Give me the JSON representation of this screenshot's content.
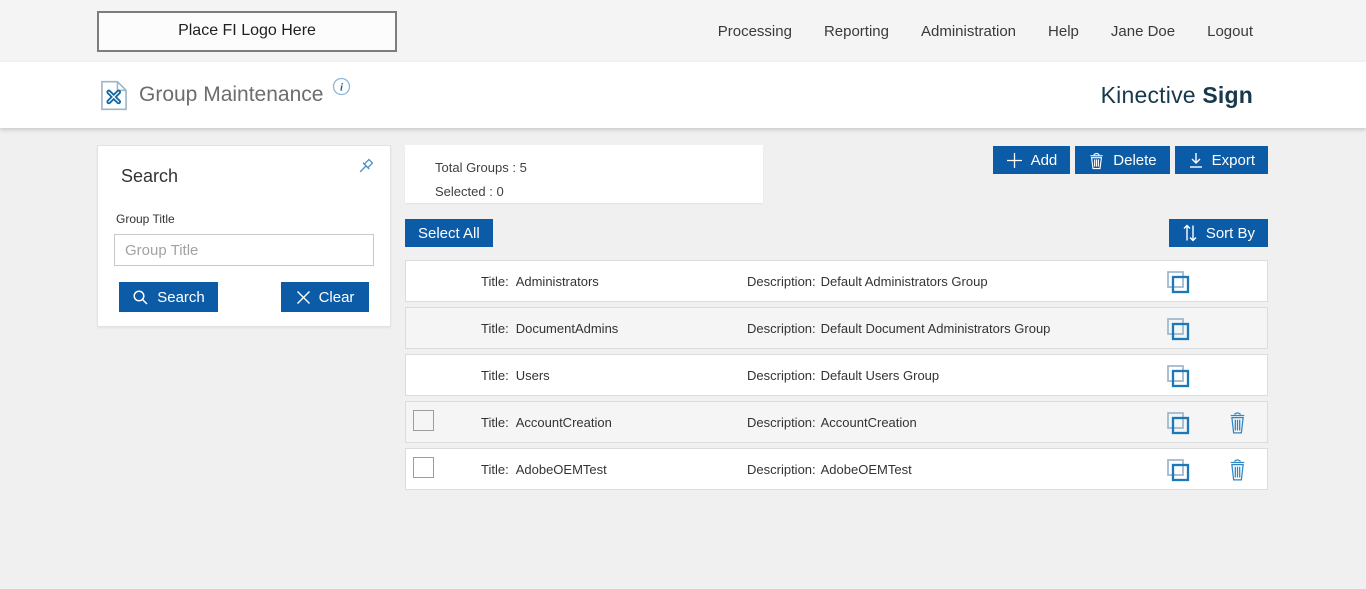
{
  "topbar": {
    "logo_placeholder": "Place FI Logo Here",
    "nav": [
      "Processing",
      "Reporting",
      "Administration",
      "Help",
      "Jane Doe",
      "Logout"
    ]
  },
  "header": {
    "title": "Group Maintenance",
    "brand_regular": "Kinective ",
    "brand_bold": "Sign"
  },
  "search_panel": {
    "title": "Search",
    "group_title_label": "Group Title",
    "group_title_placeholder": "Group Title",
    "group_title_value": "",
    "search_button": "Search",
    "clear_button": "Clear"
  },
  "summary": {
    "total_groups_label": "Total Groups :",
    "total_groups_value": "5",
    "selected_label": "Selected :",
    "selected_value": "0"
  },
  "toolbar": {
    "add": "Add",
    "delete": "Delete",
    "export": "Export",
    "select_all": "Select All",
    "sort_by": "Sort By"
  },
  "groups": {
    "title_label": "Title:",
    "description_label": "Description:",
    "rows": [
      {
        "title": "Administrators",
        "description": "Default Administrators Group",
        "selectable": false,
        "deletable": false
      },
      {
        "title": "DocumentAdmins",
        "description": "Default Document Administrators Group",
        "selectable": false,
        "deletable": false
      },
      {
        "title": "Users",
        "description": "Default Users Group",
        "selectable": false,
        "deletable": false
      },
      {
        "title": "AccountCreation",
        "description": "AccountCreation",
        "selectable": true,
        "deletable": true
      },
      {
        "title": "AdobeOEMTest",
        "description": "AdobeOEMTest",
        "selectable": true,
        "deletable": true
      }
    ]
  },
  "colors": {
    "button_blue": "#0b5ba7",
    "icon_blue": "#2e86c6",
    "copy_icon_back": "#9db6c9",
    "brand_dark": "#17394b",
    "topbar_bg": "#f4f4f4",
    "content_bg": "#f0f0f0",
    "row_alt_bg": "#f5f5f5"
  }
}
